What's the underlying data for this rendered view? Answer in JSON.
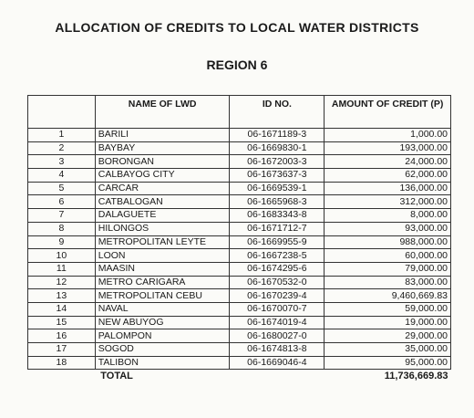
{
  "document": {
    "title": "ALLOCATION OF CREDITS TO LOCAL WATER DISTRICTS",
    "subtitle": "REGION 6"
  },
  "table": {
    "headers": {
      "no": "",
      "name": "NAME OF LWD",
      "id": "ID NO.",
      "amount": "AMOUNT OF CREDIT (P)"
    },
    "rows": [
      {
        "no": "1",
        "name": "BARILI",
        "id": "06-1671189-3",
        "amount": "1,000.00"
      },
      {
        "no": "2",
        "name": "BAYBAY",
        "id": "06-1669830-1",
        "amount": "193,000.00"
      },
      {
        "no": "3",
        "name": "BORONGAN",
        "id": "06-1672003-3",
        "amount": "24,000.00"
      },
      {
        "no": "4",
        "name": "CALBAYOG CITY",
        "id": "06-1673637-3",
        "amount": "62,000.00"
      },
      {
        "no": "5",
        "name": "CARCAR",
        "id": "06-1669539-1",
        "amount": "136,000.00"
      },
      {
        "no": "6",
        "name": "CATBALOGAN",
        "id": "06-1665968-3",
        "amount": "312,000.00"
      },
      {
        "no": "7",
        "name": "DALAGUETE",
        "id": "06-1683343-8",
        "amount": "8,000.00"
      },
      {
        "no": "8",
        "name": "HILONGOS",
        "id": "06-1671712-7",
        "amount": "93,000.00"
      },
      {
        "no": "9",
        "name": "METROPOLITAN LEYTE",
        "id": "06-1669955-9",
        "amount": "988,000.00"
      },
      {
        "no": "10",
        "name": "LOON",
        "id": "06-1667238-5",
        "amount": "60,000.00"
      },
      {
        "no": "11",
        "name": "MAASIN",
        "id": "06-1674295-6",
        "amount": "79,000.00"
      },
      {
        "no": "12",
        "name": "METRO CARIGARA",
        "id": "06-1670532-0",
        "amount": "83,000.00"
      },
      {
        "no": "13",
        "name": "METROPOLITAN CEBU",
        "id": "06-1670239-4",
        "amount": "9,460,669.83"
      },
      {
        "no": "14",
        "name": "NAVAL",
        "id": "06-1670070-7",
        "amount": "59,000.00"
      },
      {
        "no": "15",
        "name": "NEW ABUYOG",
        "id": "06-1674019-4",
        "amount": "19,000.00"
      },
      {
        "no": "16",
        "name": "PALOMPON",
        "id": "06-1680027-0",
        "amount": "29,000.00"
      },
      {
        "no": "17",
        "name": "SOGOD",
        "id": "06-1674813-8",
        "amount": "35,000.00"
      },
      {
        "no": "18",
        "name": "TALIBON",
        "id": "06-1669046-4",
        "amount": "95,000.00"
      }
    ],
    "total": {
      "label": "TOTAL",
      "amount": "11,736,669.83"
    }
  }
}
